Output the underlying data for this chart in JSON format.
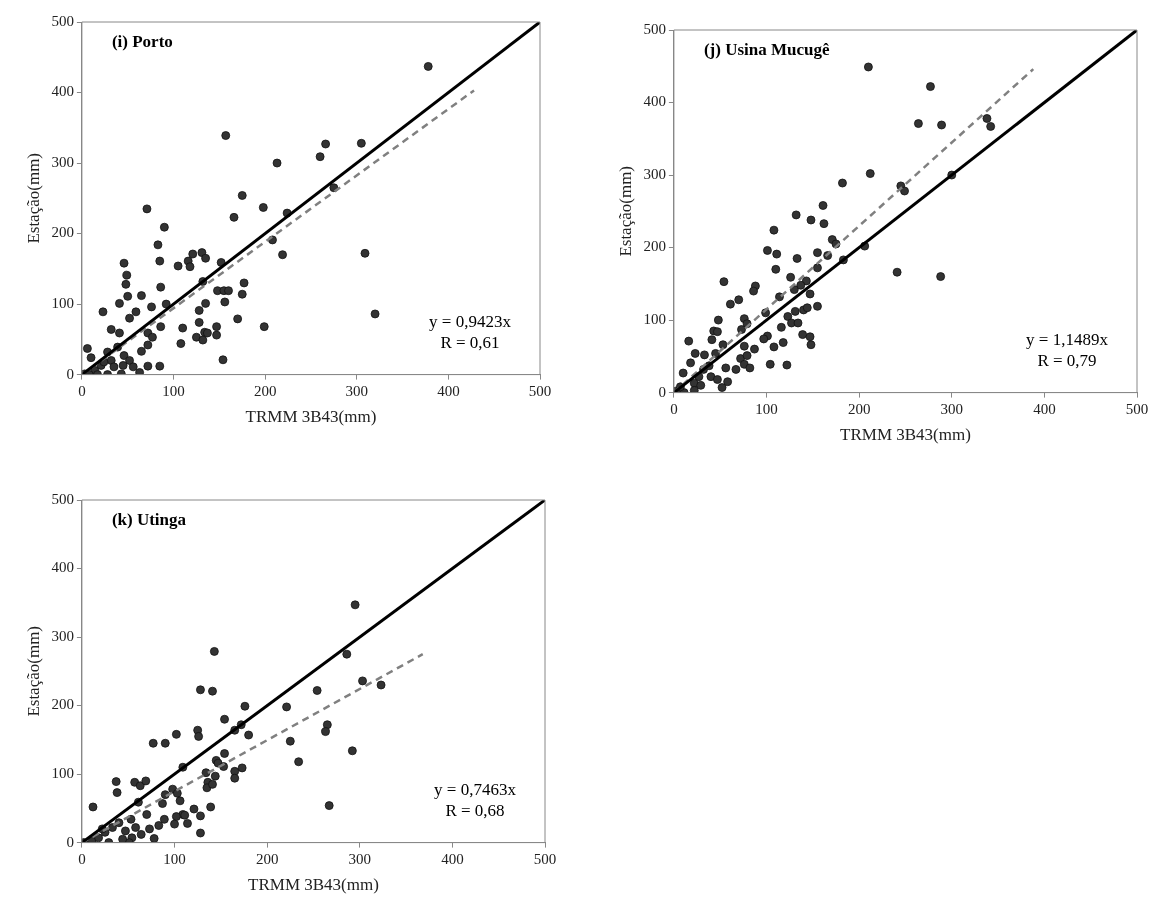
{
  "chart_data": [
    {
      "type": "scatter",
      "title": "(i) Porto",
      "xlabel": "TRMM 3B43(mm)",
      "ylabel": "Estação(mm)",
      "annotations": [
        "y = 0,9423x",
        "R = 0,61"
      ],
      "xlim": [
        0,
        500
      ],
      "ylim": [
        0,
        500
      ],
      "xticks": [
        0,
        100,
        200,
        300,
        400,
        500
      ],
      "yticks": [
        0,
        100,
        200,
        300,
        400,
        500
      ],
      "grid": false,
      "legend": false,
      "marker": "circle",
      "series": [
        {
          "color": "#333333",
          "x": [
            378,
            157,
            266,
            305,
            260,
            213,
            275,
            71,
            175,
            198,
            166,
            224,
            90,
            83,
            208,
            85,
            219,
            309,
            46,
            49,
            48,
            105,
            116,
            118,
            121,
            131,
            135,
            152,
            86,
            132,
            177,
            148,
            155,
            160,
            175,
            156,
            135,
            320,
            128,
            128,
            110,
            147,
            170,
            199,
            108,
            125,
            132,
            134,
            137,
            147,
            154,
            92,
            76,
            86,
            23,
            41,
            50,
            65,
            59,
            52,
            32,
            41,
            72,
            77,
            65,
            72,
            85,
            72,
            63,
            6,
            10,
            3,
            14,
            21,
            28,
            32,
            35,
            43,
            46,
            52,
            24,
            8,
            17,
            28,
            45,
            39,
            56
          ],
          "values": [
            437,
            339,
            327,
            328,
            309,
            300,
            265,
            235,
            254,
            237,
            223,
            229,
            209,
            184,
            191,
            161,
            170,
            172,
            158,
            141,
            128,
            154,
            161,
            153,
            171,
            173,
            165,
            159,
            124,
            132,
            130,
            119,
            119,
            119,
            114,
            103,
            101,
            86,
            91,
            74,
            66,
            68,
            79,
            68,
            44,
            53,
            49,
            60,
            59,
            56,
            21,
            100,
            96,
            68,
            89,
            101,
            111,
            112,
            89,
            80,
            64,
            59,
            59,
            53,
            33,
            42,
            12,
            12,
            3,
            37,
            24,
            1,
            6,
            13,
            0,
            20,
            11,
            1,
            27,
            20,
            18,
            0,
            0,
            32,
            13,
            39,
            11
          ]
        },
        {
          "type": "line",
          "color": "#000000",
          "line_style": "solid",
          "marker": "none",
          "x": [
            0,
            500
          ],
          "values": [
            0,
            500
          ]
        },
        {
          "type": "line",
          "color": "#808080",
          "line_style": "dashed",
          "marker": "none",
          "x": [
            0,
            428
          ],
          "values": [
            0,
            403
          ]
        }
      ]
    },
    {
      "type": "scatter",
      "title": "(j) Usina Mucugê",
      "xlabel": "TRMM 3B43(mm)",
      "ylabel": "Estação(mm)",
      "annotations": [
        "y = 1,1489x",
        "R = 0,79"
      ],
      "xlim": [
        0,
        500
      ],
      "ylim": [
        0,
        500
      ],
      "xticks": [
        0,
        100,
        200,
        300,
        400,
        500
      ],
      "yticks": [
        0,
        100,
        200,
        300,
        400,
        500
      ],
      "grid": false,
      "legend": false,
      "marker": "circle",
      "series": [
        {
          "color": "#333333",
          "x": [
            210,
            277,
            264,
            289,
            338,
            342,
            212,
            300,
            182,
            245,
            249,
            161,
            132,
            148,
            162,
            108,
            171,
            175,
            101,
            111,
            206,
            155,
            133,
            166,
            183,
            241,
            288,
            110,
            155,
            126,
            54,
            88,
            86,
            143,
            137,
            130,
            147,
            114,
            70,
            61,
            99,
            76,
            79,
            48,
            43,
            47,
            131,
            123,
            140,
            144,
            155,
            127,
            134,
            116,
            73,
            101,
            97,
            139,
            147,
            148,
            108,
            118,
            76,
            87,
            53,
            41,
            16,
            23,
            33,
            45,
            72,
            79,
            76,
            82,
            104,
            122,
            67,
            52,
            11,
            2,
            7,
            10,
            18,
            22,
            27,
            32,
            40,
            47,
            56,
            58,
            29,
            22,
            38
          ],
          "values": [
            449,
            422,
            371,
            369,
            378,
            367,
            302,
            300,
            289,
            285,
            278,
            258,
            245,
            238,
            233,
            224,
            211,
            205,
            196,
            191,
            202,
            193,
            185,
            189,
            183,
            166,
            160,
            170,
            172,
            159,
            153,
            147,
            140,
            154,
            148,
            142,
            136,
            132,
            128,
            122,
            110,
            102,
            95,
            100,
            85,
            84,
            112,
            105,
            114,
            117,
            119,
            96,
            96,
            90,
            87,
            78,
            74,
            80,
            77,
            66,
            63,
            69,
            64,
            60,
            66,
            73,
            71,
            54,
            52,
            54,
            47,
            51,
            39,
            34,
            39,
            38,
            32,
            7,
            0,
            2,
            8,
            27,
            41,
            13,
            22,
            32,
            22,
            18,
            34,
            15,
            10,
            3,
            37
          ]
        },
        {
          "type": "line",
          "color": "#000000",
          "line_style": "solid",
          "marker": "none",
          "x": [
            0,
            500
          ],
          "values": [
            0,
            500
          ]
        },
        {
          "type": "line",
          "color": "#808080",
          "line_style": "dashed",
          "marker": "none",
          "x": [
            0,
            388
          ],
          "values": [
            0,
            446
          ]
        }
      ]
    },
    {
      "type": "scatter",
      "title": "(k) Utinga",
      "xlabel": "TRMM 3B43(mm)",
      "ylabel": "Estação(mm)",
      "annotations": [
        "y = 0,7463x",
        "R = 0,68"
      ],
      "xlim": [
        0,
        500
      ],
      "ylim": [
        0,
        500
      ],
      "xticks": [
        0,
        100,
        200,
        300,
        400,
        500
      ],
      "yticks": [
        0,
        100,
        200,
        300,
        400,
        500
      ],
      "grid": false,
      "legend": false,
      "marker": "circle",
      "series": [
        {
          "color": "#333333",
          "x": [
            295,
            143,
            286,
            303,
            323,
            128,
            141,
            254,
            176,
            221,
            154,
            172,
            165,
            265,
            263,
            125,
            126,
            180,
            102,
            77,
            90,
            225,
            292,
            154,
            234,
            145,
            147,
            153,
            109,
            165,
            173,
            165,
            134,
            144,
            37,
            38,
            57,
            63,
            69,
            136,
            135,
            141,
            98,
            103,
            106,
            90,
            87,
            121,
            128,
            139,
            109,
            111,
            102,
            267,
            128,
            12,
            89,
            83,
            73,
            78,
            100,
            114,
            61,
            70,
            2,
            11,
            18,
            25,
            33,
            40,
            47,
            54,
            51,
            58,
            64,
            29,
            44,
            53,
            22
          ],
          "values": [
            347,
            279,
            275,
            236,
            230,
            223,
            221,
            222,
            199,
            198,
            180,
            172,
            164,
            172,
            162,
            164,
            155,
            157,
            158,
            145,
            145,
            148,
            134,
            130,
            118,
            120,
            116,
            111,
            110,
            104,
            109,
            94,
            102,
            97,
            89,
            73,
            88,
            83,
            90,
            88,
            80,
            85,
            78,
            72,
            61,
            70,
            57,
            49,
            39,
            52,
            41,
            40,
            38,
            54,
            14,
            52,
            34,
            25,
            20,
            6,
            27,
            28,
            59,
            41,
            0,
            2,
            7,
            15,
            22,
            29,
            17,
            7,
            0,
            22,
            12,
            0,
            5,
            34,
            20
          ]
        },
        {
          "type": "line",
          "color": "#000000",
          "line_style": "solid",
          "marker": "none",
          "x": [
            0,
            500
          ],
          "values": [
            0,
            500
          ]
        },
        {
          "type": "line",
          "color": "#808080",
          "line_style": "dashed",
          "marker": "none",
          "x": [
            0,
            368
          ],
          "values": [
            0,
            275
          ]
        }
      ]
    }
  ]
}
